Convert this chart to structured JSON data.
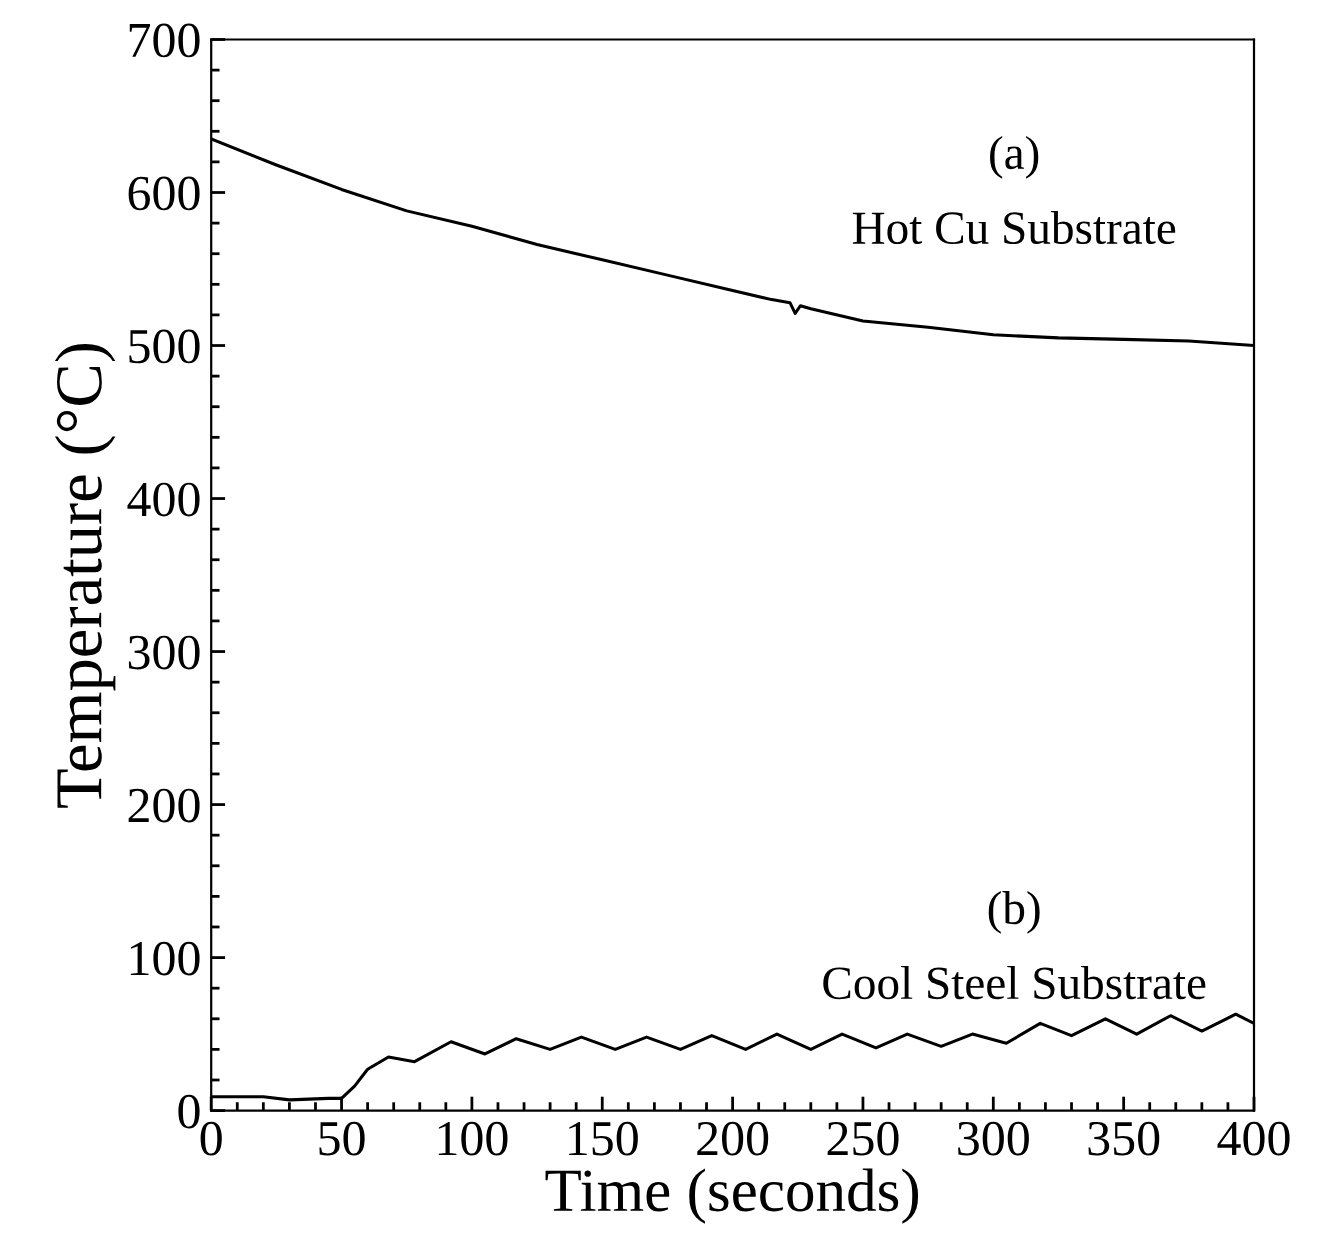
{
  "chart_data": {
    "type": "line",
    "xlabel": "Time (seconds)",
    "ylabel": "Temperature (°C)",
    "xlim": [
      0,
      400
    ],
    "ylim": [
      0,
      700
    ],
    "xticks": [
      0,
      {
        "value": 10,
        "label": null
      },
      {
        "value": 20,
        "label": null
      },
      {
        "value": 30,
        "label": null
      },
      {
        "value": 40,
        "label": null
      },
      50,
      {
        "value": 60,
        "label": null
      },
      {
        "value": 70,
        "label": null
      },
      {
        "value": 80,
        "label": null
      },
      {
        "value": 90,
        "label": null
      },
      100,
      {
        "value": 110,
        "label": null
      },
      {
        "value": 120,
        "label": null
      },
      {
        "value": 130,
        "label": null
      },
      {
        "value": 140,
        "label": null
      },
      150,
      {
        "value": 160,
        "label": null
      },
      {
        "value": 170,
        "label": null
      },
      {
        "value": 180,
        "label": null
      },
      {
        "value": 190,
        "label": null
      },
      200,
      {
        "value": 210,
        "label": null
      },
      {
        "value": 220,
        "label": null
      },
      {
        "value": 230,
        "label": null
      },
      {
        "value": 240,
        "label": null
      },
      250,
      {
        "value": 260,
        "label": null
      },
      {
        "value": 270,
        "label": null
      },
      {
        "value": 280,
        "label": null
      },
      {
        "value": 290,
        "label": null
      },
      300,
      {
        "value": 310,
        "label": null
      },
      {
        "value": 320,
        "label": null
      },
      {
        "value": 330,
        "label": null
      },
      {
        "value": 340,
        "label": null
      },
      350,
      {
        "value": 360,
        "label": null
      },
      {
        "value": 370,
        "label": null
      },
      {
        "value": 380,
        "label": null
      },
      {
        "value": 390,
        "label": null
      },
      400
    ],
    "yticks": [
      0,
      {
        "value": 20,
        "label": null
      },
      {
        "value": 40,
        "label": null
      },
      {
        "value": 60,
        "label": null
      },
      {
        "value": 80,
        "label": null
      },
      100,
      {
        "value": 120,
        "label": null
      },
      {
        "value": 140,
        "label": null
      },
      {
        "value": 160,
        "label": null
      },
      {
        "value": 180,
        "label": null
      },
      200,
      {
        "value": 220,
        "label": null
      },
      {
        "value": 240,
        "label": null
      },
      {
        "value": 260,
        "label": null
      },
      {
        "value": 280,
        "label": null
      },
      300,
      {
        "value": 320,
        "label": null
      },
      {
        "value": 340,
        "label": null
      },
      {
        "value": 360,
        "label": null
      },
      {
        "value": 380,
        "label": null
      },
      400,
      {
        "value": 420,
        "label": null
      },
      {
        "value": 440,
        "label": null
      },
      {
        "value": 460,
        "label": null
      },
      {
        "value": 480,
        "label": null
      },
      500,
      {
        "value": 520,
        "label": null
      },
      {
        "value": 540,
        "label": null
      },
      {
        "value": 560,
        "label": null
      },
      {
        "value": 580,
        "label": null
      },
      600,
      {
        "value": 620,
        "label": null
      },
      {
        "value": 640,
        "label": null
      },
      {
        "value": 660,
        "label": null
      },
      {
        "value": 680,
        "label": null
      },
      700
    ],
    "grid": false,
    "legend": false,
    "series": [
      {
        "color": "#000000",
        "x": [
          0,
          25,
          50,
          75,
          100,
          125,
          150,
          175,
          200,
          215,
          222,
          224,
          226,
          230,
          250,
          275,
          300,
          325,
          350,
          375,
          400
        ],
        "values": [
          635,
          618,
          602,
          588,
          578,
          566,
          556,
          546,
          536,
          530,
          528,
          521,
          526,
          524,
          516,
          512,
          507,
          505,
          504,
          503,
          500
        ]
      },
      {
        "color": "#000000",
        "x": [
          0,
          20,
          30,
          45,
          50,
          55,
          60,
          68,
          78,
          92,
          105,
          117,
          130,
          142,
          155,
          167,
          180,
          192,
          205,
          217,
          230,
          242,
          255,
          267,
          280,
          292,
          305,
          318,
          330,
          343,
          355,
          368,
          380,
          393,
          400
        ],
        "values": [
          9,
          9,
          7,
          8,
          8,
          16,
          27,
          35,
          32,
          45,
          37,
          47,
          40,
          48,
          40,
          48,
          40,
          49,
          40,
          50,
          40,
          50,
          41,
          50,
          42,
          50,
          44,
          57,
          49,
          60,
          50,
          62,
          52,
          63,
          57
        ]
      }
    ],
    "annotations": [
      "(a)",
      "Hot Cu Substrate",
      "(b)",
      "Cool Steel Substrate"
    ]
  }
}
